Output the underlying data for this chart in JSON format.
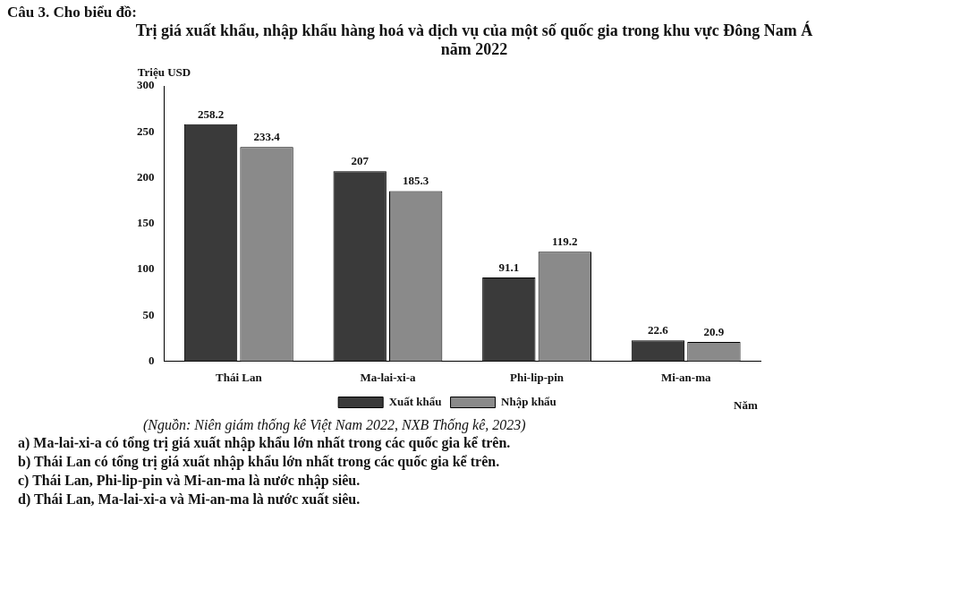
{
  "chart_data": {
    "type": "bar",
    "title": "Trị giá xuất khẩu, nhập khẩu hàng hoá và dịch vụ của một số quốc gia trong khu vực Đông Nam Á năm 2022",
    "ylabel": "Triệu USD",
    "xlabel": "Năm",
    "categories": [
      "Thái Lan",
      "Ma-lai-xi-a",
      "Phi-lip-pin",
      "Mi-an-ma"
    ],
    "series": [
      {
        "name": "Xuất khẩu",
        "color": "#3a3a3a",
        "values": [
          258.2,
          207,
          91.1,
          22.6
        ]
      },
      {
        "name": "Nhập khẩu",
        "color": "#8a8a8a",
        "values": [
          233.4,
          185.3,
          119.2,
          20.9
        ]
      }
    ],
    "ylim": [
      0,
      300
    ],
    "yticks": [
      0,
      50,
      100,
      150,
      200,
      250,
      300
    ],
    "grid": false,
    "legend": "bottom",
    "data_labels": true,
    "annotations": [
      "Câu 3. Cho biểu đồ:",
      "(Nguồn: Niên giám thống kê Việt Nam 2022, NXB Thống kê, 2023)",
      "a) Ma-lai-xi-a có tổng trị giá xuất nhập khẩu lớn nhất trong các quốc gia kể trên.",
      "b) Thái Lan có tổng trị giá xuất nhập khẩu lớn nhất trong các quốc gia kể trên.",
      "c) Thái Lan, Phi-lip-pin và Mi-an-ma là nước nhập siêu.",
      "d) Thái Lan, Ma-lai-xi-a và Mi-an-ma là nước xuất siêu."
    ]
  }
}
